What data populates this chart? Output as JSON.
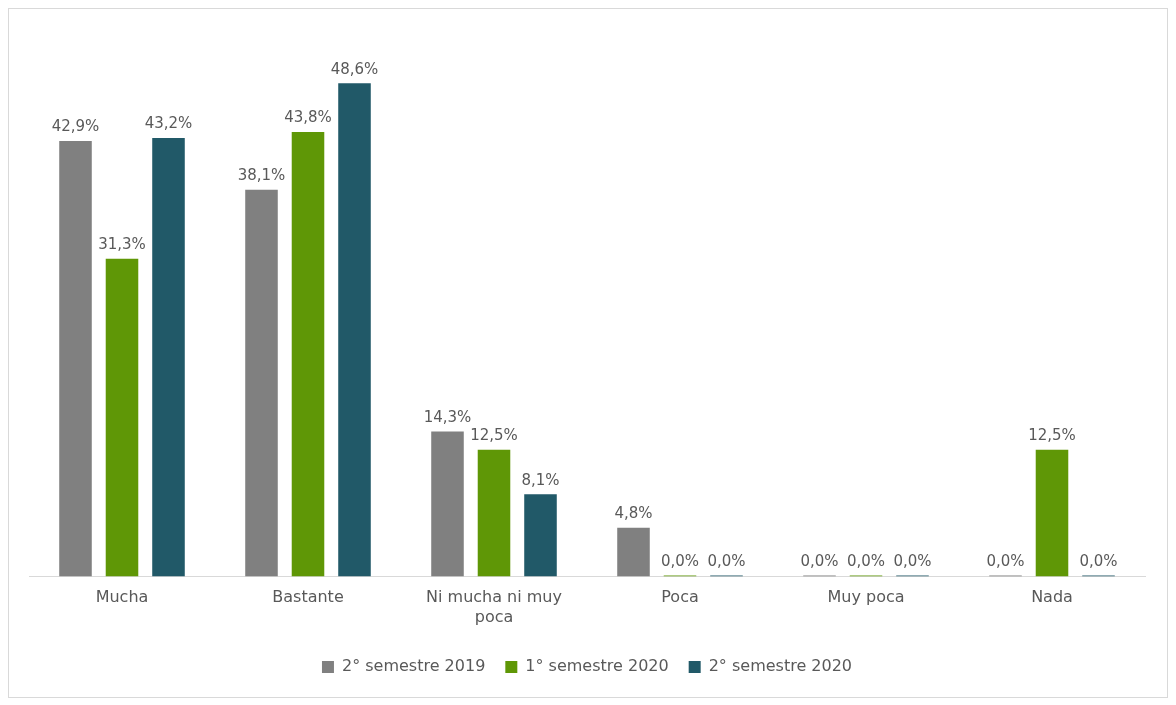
{
  "chart_data": {
    "type": "bar",
    "categories": [
      "Mucha",
      "Bastante",
      "Ni mucha ni muy poca",
      "Poca",
      "Muy poca",
      "Nada"
    ],
    "series": [
      {
        "name": "2° semestre 2019",
        "color": "#808080",
        "values": [
          42.9,
          38.1,
          14.3,
          4.8,
          0,
          0
        ],
        "value_labels": [
          "42,9%",
          "38,1%",
          "14,3%",
          "4,8%",
          "0,0%",
          "0,0%"
        ]
      },
      {
        "name": "1° semestre 2020",
        "color": "#5f9706",
        "values": [
          31.3,
          43.8,
          12.5,
          0,
          0,
          12.5
        ],
        "value_labels": [
          "31,3%",
          "43,8%",
          "12,5%",
          "0,0%",
          "0,0%",
          "12,5%"
        ]
      },
      {
        "name": "2° semestre 2020",
        "color": "#215968",
        "values": [
          43.2,
          48.6,
          8.1,
          0,
          0,
          0
        ],
        "value_labels": [
          "43,2%",
          "48,6%",
          "8,1%",
          "0,0%",
          "0,0%",
          "0,0%"
        ]
      }
    ],
    "tick_labels": "x",
    "grid": false,
    "legend": "bottom"
  }
}
